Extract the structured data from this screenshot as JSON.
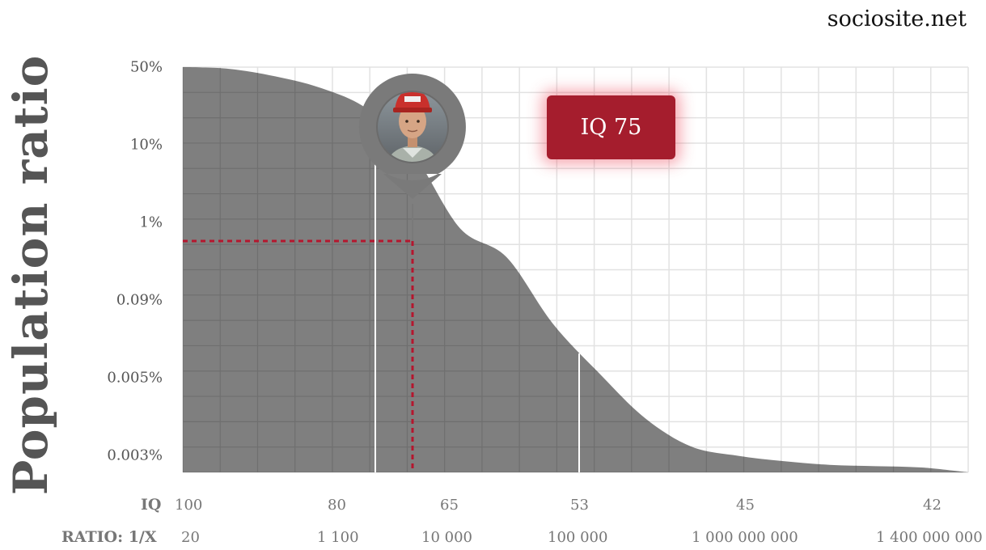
{
  "site": "sociosite.net",
  "highlight": {
    "badge_label": "IQ 75",
    "iq": 75,
    "population_ratio_percent": 0.5,
    "color": "#a51d2d"
  },
  "colors": {
    "area_fill": "#7f7f7f",
    "grid": "#e2e2e2",
    "guide_line": "#b5162e"
  },
  "chart_data": {
    "type": "area",
    "title": "",
    "ylabel": "Population ratio",
    "y_tick_labels": [
      "50%",
      "10%",
      "1%",
      "0.09%",
      "0.005%",
      "0.003%"
    ],
    "x_row_labels": [
      "IQ",
      "RATIO: 1/X"
    ],
    "x_ticks": [
      {
        "iq": "100",
        "ratio": "20"
      },
      {
        "iq": "80",
        "ratio": "1 100"
      },
      {
        "iq": "65",
        "ratio": "10 000"
      },
      {
        "iq": "53",
        "ratio": "100 000"
      },
      {
        "iq": "45",
        "ratio": "1 000 000 000"
      },
      {
        "iq": "42",
        "ratio": "1 400 000 000"
      }
    ],
    "series": [
      {
        "values": [
          50,
          48,
          40,
          30,
          18,
          6,
          1,
          0.5,
          0.1,
          0.03,
          0.01,
          0.005,
          0.004,
          0.0035,
          0.0032,
          0.0031,
          0.003,
          0.003
        ]
      }
    ],
    "reference_lines_iq": [
      "80",
      "53"
    ],
    "grid": true,
    "legend": "none"
  }
}
